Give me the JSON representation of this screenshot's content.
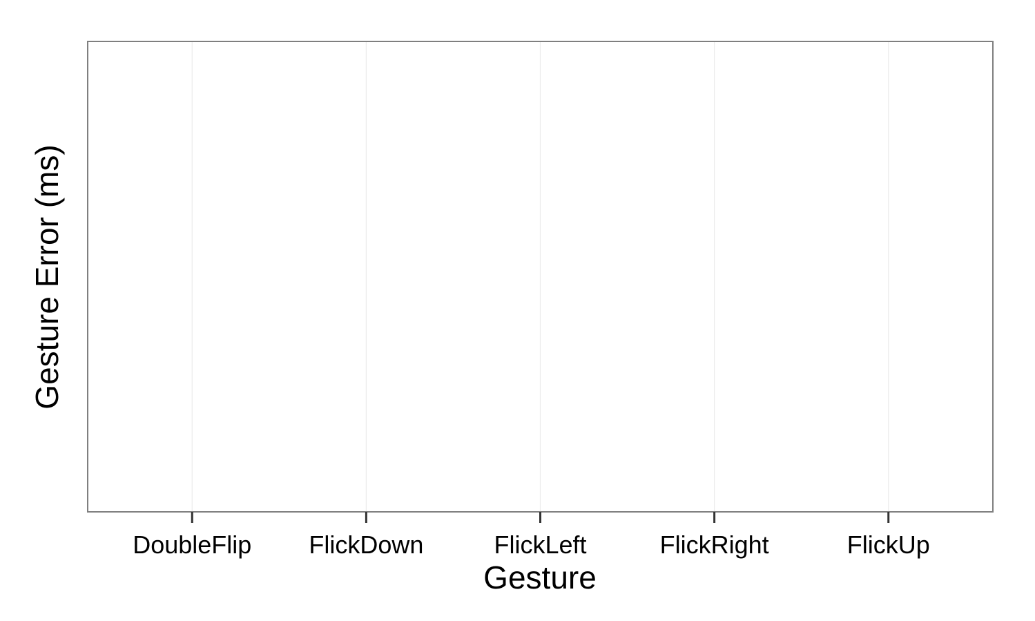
{
  "chart_data": {
    "type": "bar",
    "title": "",
    "xlabel": "Gesture",
    "ylabel": "Gesture Error (ms)",
    "categories": [
      "DoubleFlip",
      "FlickDown",
      "FlickLeft",
      "FlickRight",
      "FlickUp"
    ],
    "series": [],
    "grid": true,
    "legend": "none",
    "colors": {
      "panel_border": "#7f7f7f",
      "grid": "#ebebeb",
      "tick": "#333333",
      "text": "#000000",
      "background": "#ffffff"
    }
  }
}
